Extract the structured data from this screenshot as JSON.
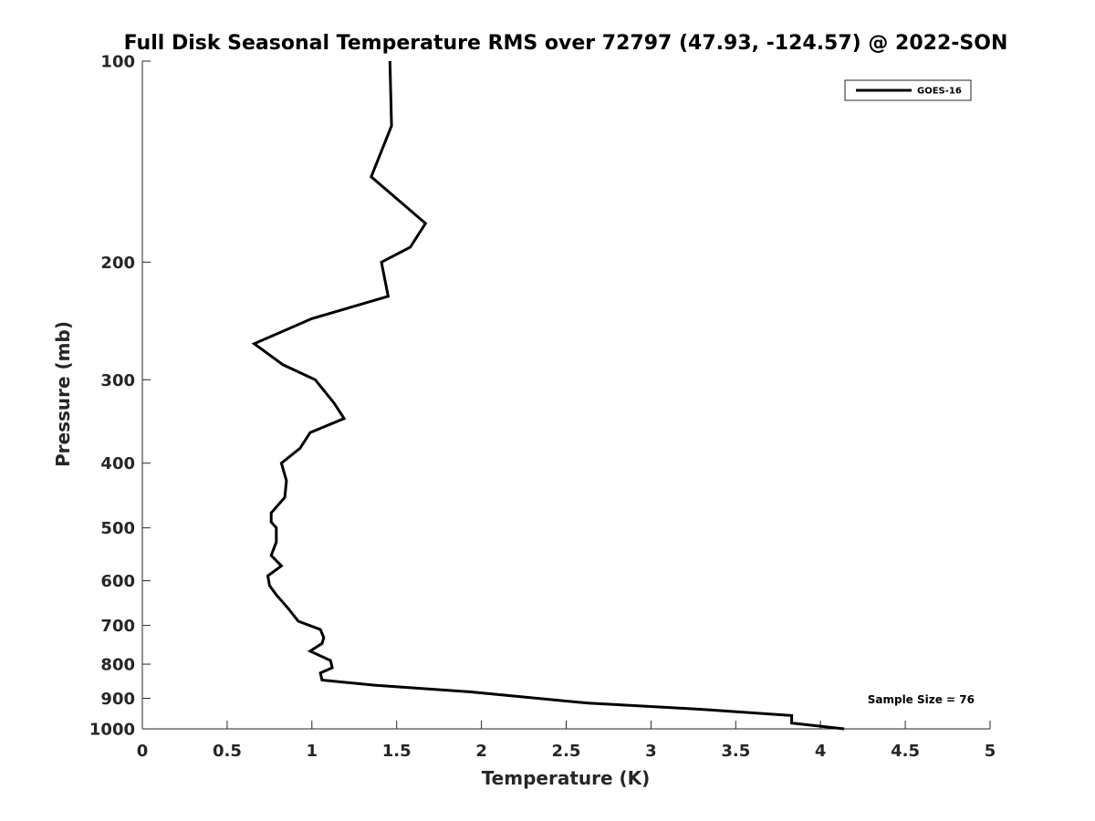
{
  "chart_data": {
    "type": "line",
    "title": "Full Disk Seasonal Temperature RMS over 72797 (47.93, -124.57) @ 2022-SON",
    "xlabel": "Temperature (K)",
    "ylabel": "Pressure (mb)",
    "xlim": [
      0,
      5
    ],
    "ylim": [
      100,
      1000
    ],
    "yscale": "log",
    "y_reversed": true,
    "x_ticks": [
      0,
      0.5,
      1,
      1.5,
      2,
      2.5,
      3,
      3.5,
      4,
      4.5,
      5
    ],
    "x_tick_labels": [
      "0",
      "0.5",
      "1",
      "1.5",
      "2",
      "2.5",
      "3",
      "3.5",
      "4",
      "4.5",
      "5"
    ],
    "y_ticks": [
      100,
      200,
      300,
      400,
      500,
      600,
      700,
      800,
      900,
      1000
    ],
    "y_tick_labels": [
      "100",
      "200",
      "300",
      "400",
      "500",
      "600",
      "700",
      "800",
      "900",
      "1000"
    ],
    "grid": false,
    "legend_position": "top-right",
    "annotation": "Sample Size = 76",
    "series": [
      {
        "name": "GOES-16",
        "color": "#000000",
        "points": [
          [
            1.46,
            100
          ],
          [
            1.47,
            125
          ],
          [
            1.35,
            149
          ],
          [
            1.67,
            175
          ],
          [
            1.58,
            190
          ],
          [
            1.41,
            200
          ],
          [
            1.45,
            225
          ],
          [
            1.0,
            243
          ],
          [
            0.66,
            265
          ],
          [
            0.83,
            285
          ],
          [
            1.02,
            300
          ],
          [
            1.13,
            325
          ],
          [
            1.19,
            343
          ],
          [
            0.99,
            360
          ],
          [
            0.93,
            380
          ],
          [
            0.82,
            400
          ],
          [
            0.85,
            425
          ],
          [
            0.84,
            450
          ],
          [
            0.76,
            475
          ],
          [
            0.76,
            490
          ],
          [
            0.79,
            500
          ],
          [
            0.79,
            525
          ],
          [
            0.76,
            550
          ],
          [
            0.82,
            570
          ],
          [
            0.74,
            590
          ],
          [
            0.75,
            610
          ],
          [
            0.79,
            630
          ],
          [
            0.86,
            660
          ],
          [
            0.92,
            690
          ],
          [
            1.05,
            710
          ],
          [
            1.07,
            730
          ],
          [
            1.06,
            745
          ],
          [
            0.99,
            765
          ],
          [
            1.11,
            790
          ],
          [
            1.12,
            810
          ],
          [
            1.05,
            825
          ],
          [
            1.06,
            845
          ],
          [
            1.37,
            860
          ],
          [
            1.93,
            880
          ],
          [
            2.63,
            915
          ],
          [
            3.3,
            935
          ],
          [
            3.83,
            955
          ],
          [
            3.83,
            980
          ],
          [
            4.14,
            1000
          ]
        ]
      }
    ]
  }
}
